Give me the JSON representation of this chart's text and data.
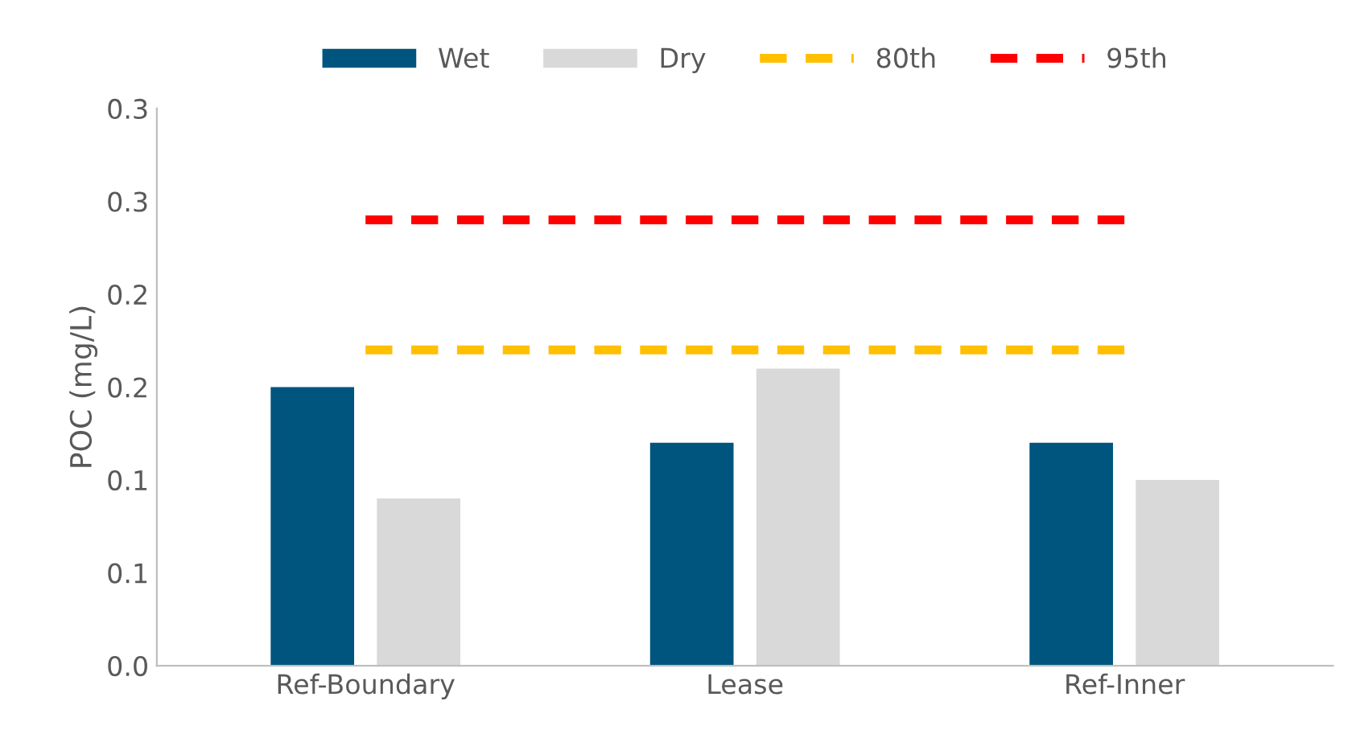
{
  "chart_data": {
    "type": "bar",
    "ylabel": "POC (mg/L)",
    "categories": [
      "Ref-Boundary",
      "Lease",
      "Ref-Inner"
    ],
    "series": [
      {
        "name": "Wet",
        "color": "#00557f",
        "values": [
          0.15,
          0.12,
          0.12
        ]
      },
      {
        "name": "Dry",
        "color": "#d9d9d9",
        "values": [
          0.09,
          0.16,
          0.1
        ]
      },
      {
        "name": "80th",
        "type": "line",
        "line_style": "dashed",
        "color": "#ffc000",
        "values": [
          0.17,
          0.17,
          0.17
        ]
      },
      {
        "name": "95th",
        "type": "line",
        "line_style": "dashed",
        "color": "#ff0000",
        "values": [
          0.24,
          0.24,
          0.24
        ]
      }
    ],
    "ylim": [
      0,
      0.3
    ],
    "yticks": [
      {
        "value": 0,
        "label": "0.0"
      },
      {
        "value": 0.05,
        "label": "0.1"
      },
      {
        "value": 0.1,
        "label": "0.1"
      },
      {
        "value": 0.15,
        "label": "0.2"
      },
      {
        "value": 0.2,
        "label": "0.2"
      },
      {
        "value": 0.25,
        "label": "0.3"
      },
      {
        "value": 0.3,
        "label": "0.3"
      }
    ],
    "grid": false,
    "legend": "top"
  }
}
